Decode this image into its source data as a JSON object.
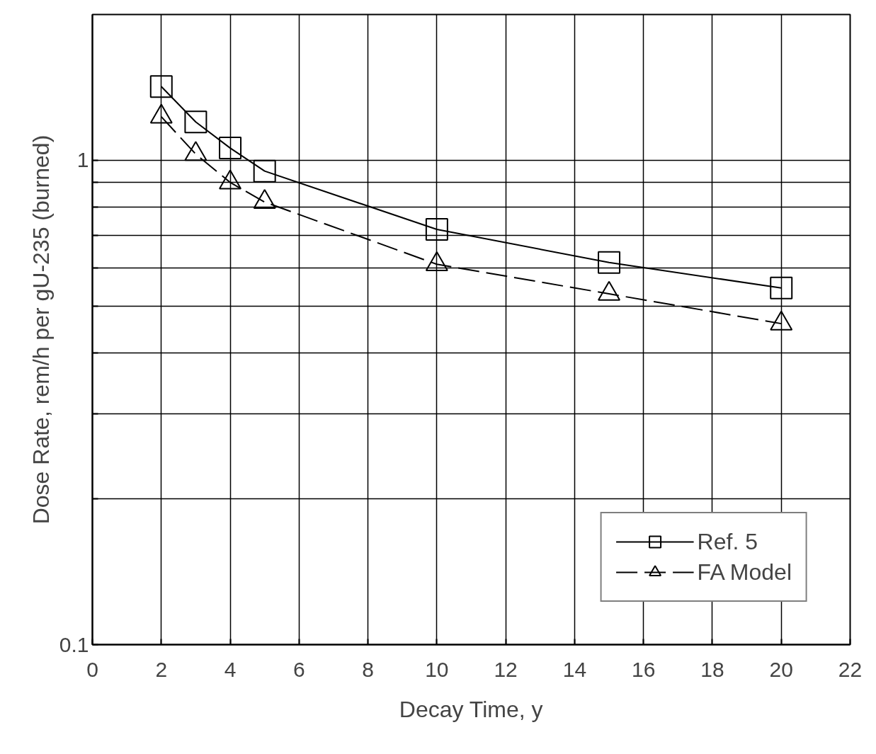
{
  "chart_data": {
    "type": "line",
    "xlabel": "Decay Time, y",
    "ylabel": "Dose Rate, rem/h per gU-235 (burned)",
    "log": true,
    "grid": true,
    "legend": "bottom right",
    "xlim": [
      0,
      22
    ],
    "ylim": [
      0.1,
      2
    ],
    "xticks": [
      0,
      2,
      4,
      6,
      8,
      10,
      12,
      14,
      16,
      18,
      20,
      22
    ],
    "yticks": [
      0.1,
      {
        "value": 0.2,
        "label": null
      },
      {
        "value": 0.3,
        "label": null
      },
      {
        "value": 0.4,
        "label": null
      },
      {
        "value": 0.5,
        "label": null
      },
      {
        "value": 0.6,
        "label": null
      },
      {
        "value": 0.7,
        "label": null
      },
      {
        "value": 0.8,
        "label": null
      },
      {
        "value": 0.9,
        "label": null
      },
      1
    ],
    "series": [
      {
        "name": "Ref. 5",
        "color": "#000000",
        "marker": "square",
        "line_style": "solid",
        "x": [
          2,
          3,
          4,
          5,
          10,
          15,
          20
        ],
        "values": [
          1.42,
          1.2,
          1.06,
          0.95,
          0.72,
          0.615,
          0.545
        ]
      },
      {
        "name": "FA Model",
        "color": "#000000",
        "marker": "triangle",
        "line_style": "dashed",
        "x": [
          2,
          3,
          4,
          5,
          10,
          15,
          20
        ],
        "values": [
          1.23,
          1.03,
          0.9,
          0.82,
          0.61,
          0.53,
          0.46
        ]
      }
    ]
  }
}
